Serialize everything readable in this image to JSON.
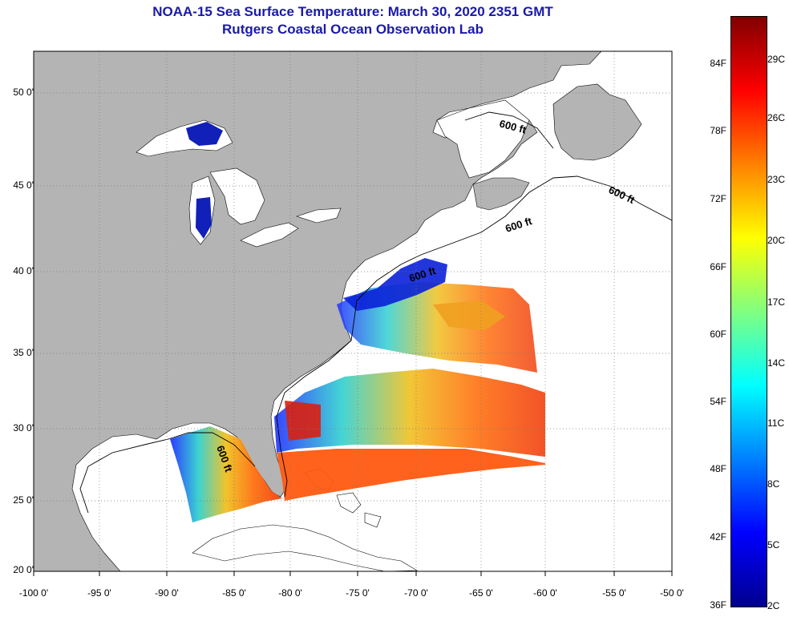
{
  "title": {
    "line1": "NOAA-15 Sea Surface Temperature:  March 30, 2020 2351 GMT",
    "line2": "Rutgers Coastal Ocean Observation Lab"
  },
  "map": {
    "lat_labels": [
      "50 0'",
      "45 0'",
      "40 0'",
      "35 0'",
      "30 0'",
      "25 0'",
      "20 0'"
    ],
    "lon_labels": [
      "-100 0'",
      "-95 0'",
      "-90 0'",
      "-85 0'",
      "-80 0'",
      "-75 0'",
      "-70 0'",
      "-65 0'",
      "-60 0'",
      "-55 0'",
      "-50 0'"
    ],
    "contour_label": "600 ft",
    "colors": {
      "land": "#b4b4b4",
      "no_data": "#ffffff",
      "grid": "#7a7a7a",
      "contour": "#000000"
    }
  },
  "colorbar": {
    "fahrenheit": [
      "84F",
      "78F",
      "72F",
      "66F",
      "60F",
      "54F",
      "48F",
      "42F",
      "36F"
    ],
    "celsius": [
      "29C",
      "26C",
      "23C",
      "20C",
      "17C",
      "14C",
      "11C",
      "8C",
      "5C",
      "2C"
    ],
    "gradient": [
      "#00008f",
      "#0000ff",
      "#0080ff",
      "#00ffff",
      "#80ff80",
      "#ffff00",
      "#ff8000",
      "#ff0000",
      "#800000"
    ]
  }
}
